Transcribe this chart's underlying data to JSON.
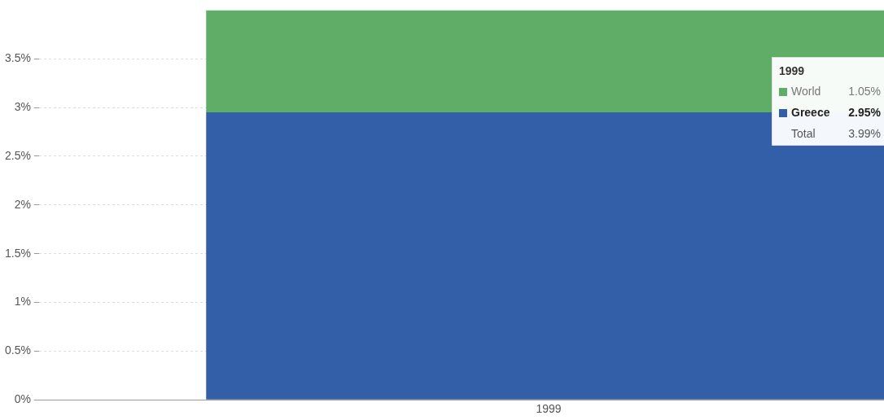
{
  "chart_data": {
    "type": "bar",
    "stacked": true,
    "categories": [
      "1999"
    ],
    "series": [
      {
        "name": "Greece",
        "color": "#335fa8",
        "values": [
          2.95
        ],
        "value_labels": [
          "2.95%"
        ]
      },
      {
        "name": "World",
        "color": "#5fad66",
        "values": [
          1.05
        ],
        "value_labels": [
          "1.05%"
        ]
      }
    ],
    "totals": [
      "3.99%"
    ],
    "annotations": [
      "Total"
    ],
    "ylim": [
      0,
      4
    ],
    "yticks": [
      {
        "value": 0,
        "label": "0%"
      },
      {
        "value": 0.5,
        "label": "0.5%"
      },
      {
        "value": 1,
        "label": "1%"
      },
      {
        "value": 1.5,
        "label": "1.5%"
      },
      {
        "value": 2,
        "label": "2%"
      },
      {
        "value": 2.5,
        "label": "2.5%"
      },
      {
        "value": 3,
        "label": "3%"
      },
      {
        "value": 3.5,
        "label": "3.5%"
      }
    ],
    "grid": "y",
    "legend": "top right"
  }
}
